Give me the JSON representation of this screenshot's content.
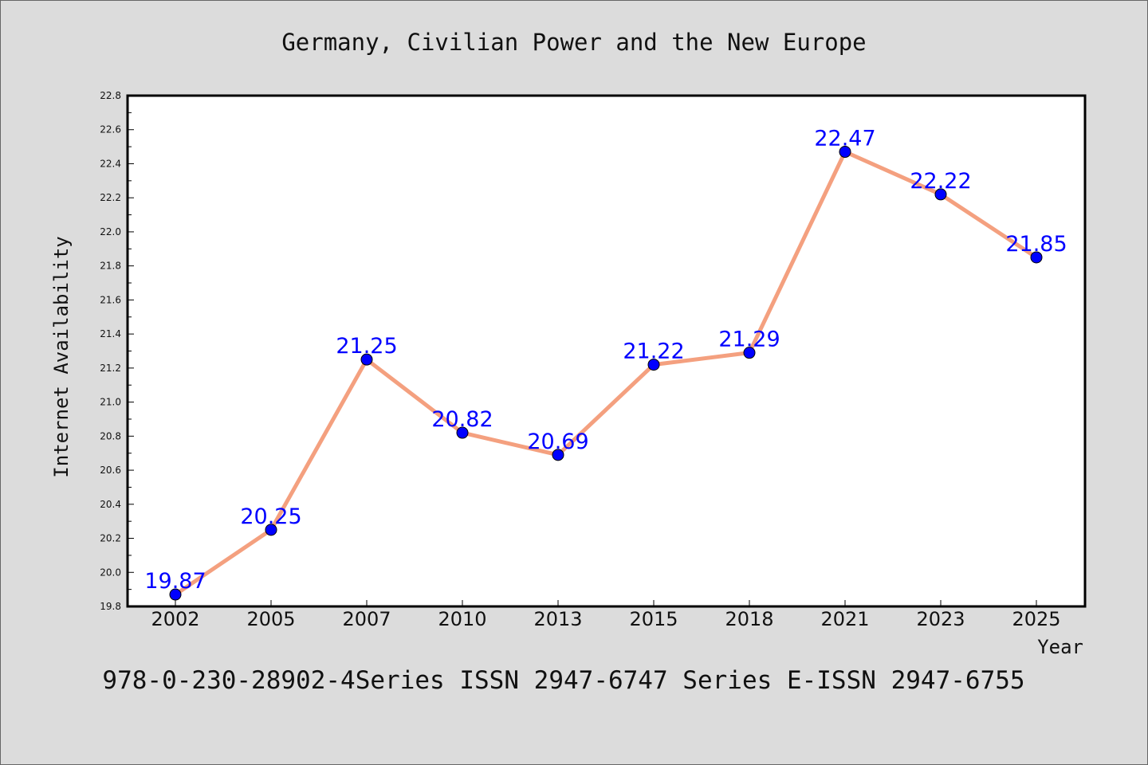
{
  "chart_data": {
    "type": "line",
    "title": "Germany, Civilian Power and the New Europe",
    "xlabel": "Year",
    "ylabel": "Internet Availability",
    "categories": [
      "2002",
      "2005",
      "2007",
      "2010",
      "2013",
      "2015",
      "2018",
      "2021",
      "2023",
      "2025"
    ],
    "series": [
      {
        "values": [
          19.87,
          20.25,
          21.25,
          20.82,
          20.69,
          21.22,
          21.29,
          22.47,
          22.22,
          21.85
        ],
        "line_color": "#f4a07f",
        "marker_color": "#0000ff"
      }
    ],
    "data_labels": [
      "19.87",
      "20.25",
      "21.25",
      "20.82",
      "20.69",
      "21.22",
      "21.29",
      "22.47",
      "22.22",
      "21.85"
    ],
    "ylim": [
      19.8,
      22.8
    ],
    "yticks": [
      "19.8",
      "20.0",
      "20.2",
      "20.4",
      "20.6",
      "20.8",
      "21.0",
      "21.2",
      "21.4",
      "21.6",
      "21.8",
      "22.0",
      "22.2",
      "22.4",
      "22.6",
      "22.8"
    ],
    "grid": false,
    "label_color": "#0000ff"
  },
  "footer": {
    "text": "978-0-230-28902-4Series ISSN 2947-6747 Series E-ISSN 2947-6755"
  }
}
